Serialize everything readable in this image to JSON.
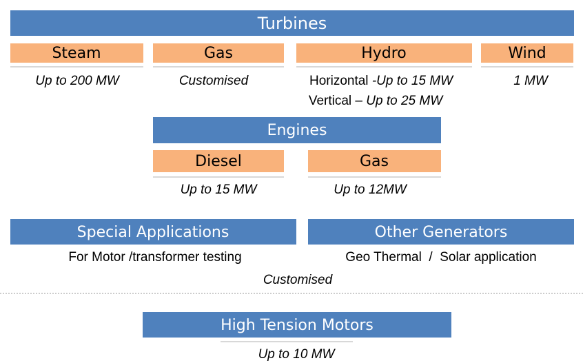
{
  "turbines": {
    "title": "Turbines",
    "items": [
      {
        "label": "Steam",
        "detail": "Up to 200 MW"
      },
      {
        "label": "Gas",
        "detail": "Customised"
      },
      {
        "label": "Hydro",
        "detail_lines": [
          [
            "Horizontal ",
            "-Up to 15 MW"
          ],
          [
            "Vertical – ",
            "Up to 25 MW"
          ]
        ]
      },
      {
        "label": "Wind",
        "detail": "1 MW"
      }
    ]
  },
  "engines": {
    "title": "Engines",
    "items": [
      {
        "label": "Diesel",
        "detail": "Up to 15 MW"
      },
      {
        "label": "Gas",
        "detail": "Up to 12MW"
      }
    ]
  },
  "special_applications": {
    "title": "Special Applications",
    "detail": "For Motor /transformer testing"
  },
  "other_generators": {
    "title": "Other Generators",
    "detail": "Geo Thermal  /  Solar application"
  },
  "shared_note": "Customised",
  "high_tension_motors": {
    "title": "High Tension Motors",
    "detail": "Up to 10 MW"
  }
}
